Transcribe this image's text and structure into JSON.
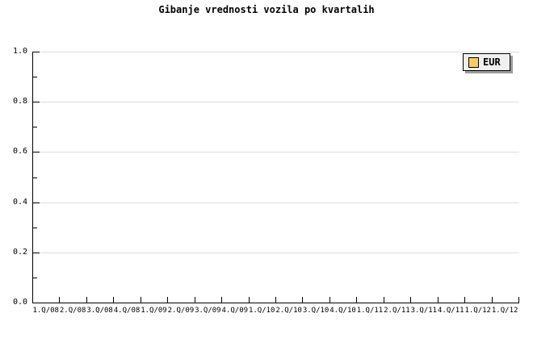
{
  "title": "Gibanje vrednosti vozila po kvartalih",
  "legend": {
    "items": [
      {
        "label": "EUR",
        "swatch_color": "#FACB66"
      }
    ]
  },
  "colors": {
    "background": "#FFFFFF",
    "axis": "#000000",
    "text": "#000000",
    "gridline": "#DEDEDE",
    "legend_background": "#F0F0F0",
    "legend_border": "#000000",
    "legend_shadow": "#9B9B9B",
    "series_eur": "#FACB66"
  },
  "chart_data": {
    "type": "line",
    "title": "Gibanje vrednosti vozila po kvartalih",
    "categories": [
      "1.Q/08",
      "2.Q/08",
      "3.Q/08",
      "4.Q/08",
      "1.Q/09",
      "2.Q/09",
      "3.Q/09",
      "4.Q/09",
      "1.Q/10",
      "2.Q/10",
      "3.Q/10",
      "4.Q/10",
      "1.Q/11",
      "2.Q/11",
      "3.Q/11",
      "4.Q/11",
      "1.Q/12",
      "1.Q/12"
    ],
    "series": [
      {
        "name": "EUR",
        "color": "#FACB66",
        "values": []
      }
    ],
    "xlabel": "",
    "ylabel": "",
    "ylim": [
      0,
      1
    ],
    "y_tick_labels": [
      "0.0",
      "0.2",
      "0.4",
      "0.6",
      "0.8",
      "1.0"
    ],
    "y_major_tick_step": 0.2,
    "y_minor_tick_step": 0.1,
    "grid": "horizontal-only",
    "legend_position": "top-right",
    "plotted_points": "none (empty plot area; axes, gridlines and legend only)"
  }
}
